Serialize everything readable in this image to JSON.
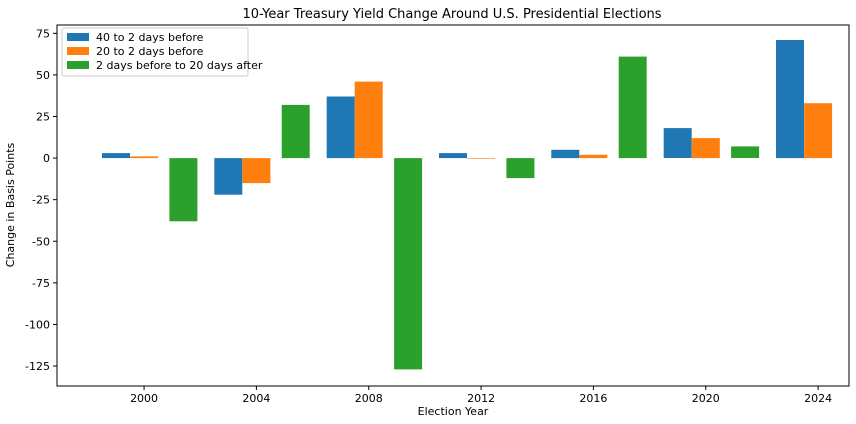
{
  "chart_data": {
    "type": "bar",
    "title": "10-Year Treasury Yield Change Around U.S. Presidential Elections",
    "xlabel": "Election Year",
    "ylabel": "Change in Basis Points",
    "x_ticks": [
      "2000",
      "2004",
      "2008",
      "2012",
      "2016",
      "2020",
      "2024"
    ],
    "x_range": [
      1996.9,
      2025.1
    ],
    "ylim": [
      -137,
      80
    ],
    "y_ticks": [
      75,
      50,
      25,
      0,
      -25,
      -50,
      -75,
      -100,
      -125
    ],
    "grid": false,
    "legend_position": "top-left",
    "series": [
      {
        "name": "40 to 2 days before",
        "color": "#1f77b4",
        "x": [
          1999,
          2003,
          2007,
          2011,
          2015,
          2019,
          2023
        ],
        "values": [
          3,
          -22,
          37,
          3,
          5,
          18,
          71
        ]
      },
      {
        "name": "20 to 2 days before",
        "color": "#ff7f0e",
        "x": [
          2000,
          2004,
          2008,
          2012,
          2016,
          2020,
          2024
        ],
        "values": [
          1,
          -15,
          46,
          0,
          2,
          12,
          33
        ]
      },
      {
        "name": "2 days before to 20 days after",
        "color": "#2ca02c",
        "x": [
          2001.4,
          2005.4,
          2009.4,
          2013.4,
          2017.4,
          2021.4
        ],
        "values": [
          -38,
          32,
          -127,
          -12,
          61,
          7
        ]
      }
    ]
  }
}
